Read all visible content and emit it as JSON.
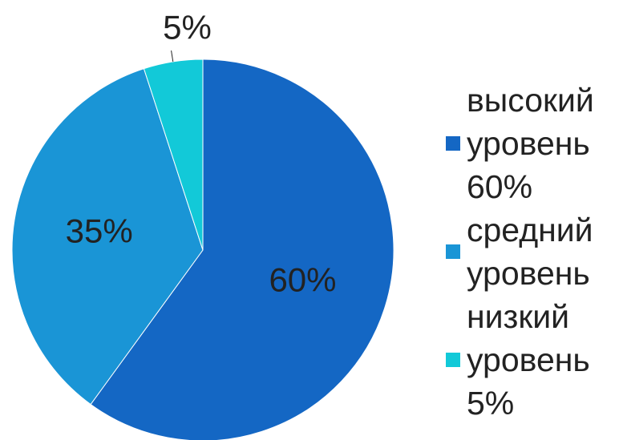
{
  "chart_data": {
    "type": "pie",
    "categories": [
      "высокий уровень 60%",
      "средний уровень",
      "низкий уровень 5%"
    ],
    "values": [
      60,
      35,
      5
    ],
    "value_labels": [
      "60%",
      "35%",
      "5%"
    ],
    "colors": [
      "#1467c4",
      "#1a95d6",
      "#12c9d8"
    ],
    "legend": "right"
  }
}
